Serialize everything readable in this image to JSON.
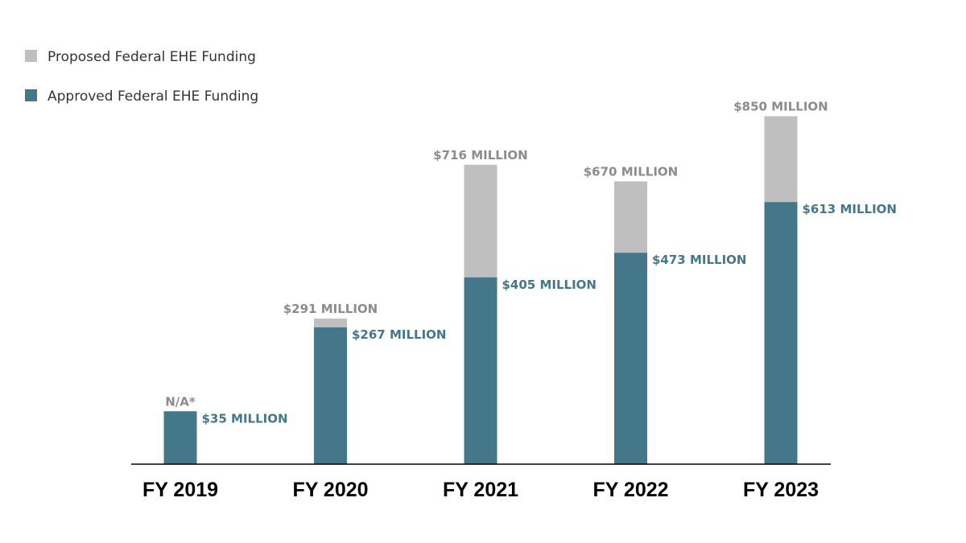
{
  "chart_data": {
    "type": "bar",
    "stacked": "overlay",
    "title": "",
    "xlabel": "",
    "ylabel": "",
    "categories": [
      "FY 2019",
      "FY 2020",
      "FY 2021",
      "FY 2022",
      "FY 2023"
    ],
    "series": [
      {
        "name": "Proposed Federal EHE Funding",
        "color": "#bfbfbf",
        "values": [
          null,
          291,
          716,
          670,
          850
        ],
        "labels": [
          "N/A*",
          "$291 MILLION",
          "$716 MILLION",
          "$670 MILLION",
          "$850 MILLION"
        ]
      },
      {
        "name": "Approved Federal EHE Funding",
        "color": "#44778a",
        "values": [
          35,
          267,
          405,
          473,
          613
        ],
        "labels": [
          "$35 MILLION",
          "$267 MILLION",
          "$405 MILLION",
          "$473 MILLION",
          "$613 MILLION"
        ]
      }
    ],
    "unit": "million USD",
    "grid": false,
    "legend_position": "top-left"
  }
}
